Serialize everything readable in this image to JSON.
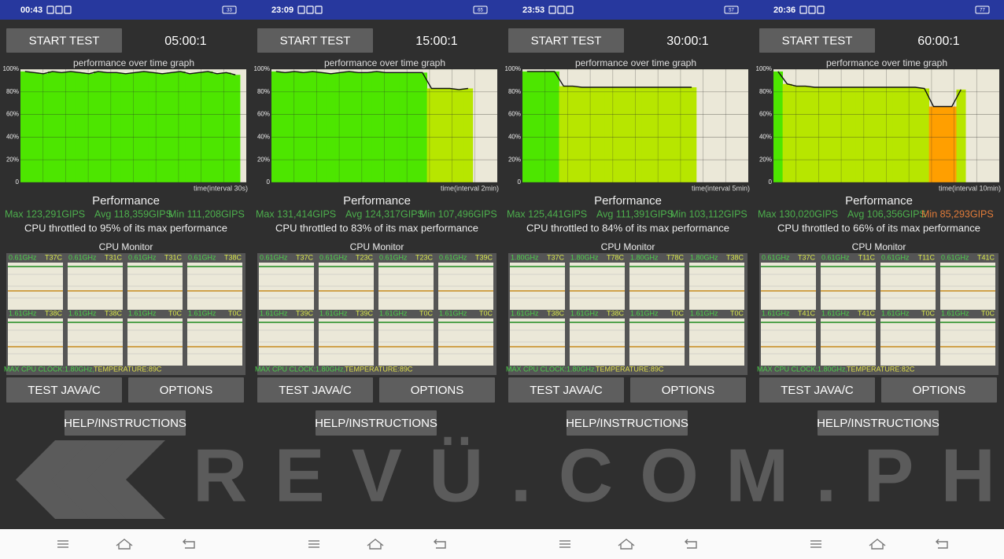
{
  "panels": [
    {
      "status_time": "00:43",
      "battery": "33",
      "start_button": "START TEST",
      "duration": "05:00:1",
      "graph": {
        "title": "performance over time graph",
        "x_label": "time(interval 30s)",
        "ylim": [
          0,
          100
        ],
        "yticks": [
          {
            "value": 100,
            "label": "100%"
          },
          {
            "value": 80,
            "label": "80%"
          },
          {
            "value": 60,
            "label": "60%"
          },
          {
            "value": 40,
            "label": "40%"
          },
          {
            "value": 20,
            "label": "20%"
          },
          0
        ],
        "values": [
          98,
          97,
          96,
          98,
          97,
          98,
          97,
          96,
          98,
          97,
          97,
          96,
          97,
          98,
          97,
          96,
          97,
          98,
          96,
          97,
          98,
          96,
          97,
          95
        ]
      },
      "performance_title": "Performance",
      "max": "Max 123,291GIPS",
      "avg": "Avg 118,359GIPS",
      "min": "Min 111,208GIPS",
      "min_color": "#4cae4c",
      "throttle": "CPU throttled to 95% of its max performance",
      "cpu_monitor": "CPU Monitor",
      "cores": [
        {
          "freq": "0.61GHz",
          "temp": "T37C"
        },
        {
          "freq": "0.61GHz",
          "temp": "T31C"
        },
        {
          "freq": "0.61GHz",
          "temp": "T31C"
        },
        {
          "freq": "0.61GHz",
          "temp": "T38C"
        },
        {
          "freq": "1.61GHz",
          "temp": "T38C"
        },
        {
          "freq": "1.61GHz",
          "temp": "T38C"
        },
        {
          "freq": "1.61GHz",
          "temp": "T0C"
        },
        {
          "freq": "1.61GHz",
          "temp": "T0C"
        }
      ],
      "max_clock": "MAX CPU CLOCK:1.80GHz,",
      "temperature": "TEMPERATURE:89C",
      "test_button": "TEST JAVA/C",
      "options_button": "OPTIONS",
      "help_button": "HELP/INSTRUCTIONS"
    },
    {
      "status_time": "23:09",
      "battery": "65",
      "start_button": "START TEST",
      "duration": "15:00:1",
      "graph": {
        "title": "performance over time graph",
        "x_label": "time(interval 2min)",
        "ylim": [
          0,
          100
        ],
        "yticks": [
          {
            "value": 100,
            "label": "100%"
          },
          {
            "value": 80,
            "label": "80%"
          },
          {
            "value": 60,
            "label": "60%"
          },
          {
            "value": 40,
            "label": "40%"
          },
          {
            "value": 20,
            "label": "20%"
          },
          0
        ],
        "values": [
          98,
          97,
          98,
          97,
          98,
          97,
          96,
          97,
          98,
          97,
          97,
          98,
          97,
          97,
          97,
          97,
          97,
          83,
          83,
          83,
          82,
          83,
          null,
          null
        ]
      },
      "performance_title": "Performance",
      "max": "Max 131,414GIPS",
      "avg": "Avg 124,317GIPS",
      "min": "Min 107,496GIPS",
      "min_color": "#4cae4c",
      "throttle": "CPU throttled to 83% of its max performance",
      "cpu_monitor": "CPU Monitor",
      "cores": [
        {
          "freq": "0.61GHz",
          "temp": "T37C"
        },
        {
          "freq": "0.61GHz",
          "temp": "T23C"
        },
        {
          "freq": "0.61GHz",
          "temp": "T23C"
        },
        {
          "freq": "0.61GHz",
          "temp": "T39C"
        },
        {
          "freq": "1.61GHz",
          "temp": "T39C"
        },
        {
          "freq": "1.61GHz",
          "temp": "T39C"
        },
        {
          "freq": "1.61GHz",
          "temp": "T0C"
        },
        {
          "freq": "1.61GHz",
          "temp": "T0C"
        }
      ],
      "max_clock": "MAX CPU CLOCK:1.80GHz,",
      "temperature": "TEMPERATURE:89C",
      "test_button": "TEST JAVA/C",
      "options_button": "OPTIONS",
      "help_button": "HELP/INSTRUCTIONS"
    },
    {
      "status_time": "23:53",
      "battery": "57",
      "start_button": "START TEST",
      "duration": "30:00:1",
      "graph": {
        "title": "performance over time graph",
        "x_label": "time(interval 5min)",
        "ylim": [
          0,
          100
        ],
        "yticks": [
          {
            "value": 100,
            "label": "100%"
          },
          {
            "value": 80,
            "label": "80%"
          },
          {
            "value": 60,
            "label": "60%"
          },
          {
            "value": 40,
            "label": "40%"
          },
          {
            "value": 20,
            "label": "20%"
          },
          0
        ],
        "values": [
          98,
          98,
          98,
          98,
          85,
          85,
          84,
          84,
          84,
          84,
          84,
          84,
          84,
          84,
          84,
          84,
          84,
          84,
          84,
          null,
          null,
          null,
          null,
          null
        ]
      },
      "performance_title": "Performance",
      "max": "Max 125,441GIPS",
      "avg": "Avg 111,391GIPS",
      "min": "Min 103,112GIPS",
      "min_color": "#4cae4c",
      "throttle": "CPU throttled to 84% of its max performance",
      "cpu_monitor": "CPU Monitor",
      "cores": [
        {
          "freq": "1.80GHz",
          "temp": "T37C"
        },
        {
          "freq": "1.80GHz",
          "temp": "T78C"
        },
        {
          "freq": "1.80GHz",
          "temp": "T78C"
        },
        {
          "freq": "1.80GHz",
          "temp": "T38C"
        },
        {
          "freq": "1.61GHz",
          "temp": "T38C"
        },
        {
          "freq": "1.61GHz",
          "temp": "T38C"
        },
        {
          "freq": "1.61GHz",
          "temp": "T0C"
        },
        {
          "freq": "1.61GHz",
          "temp": "T0C"
        }
      ],
      "max_clock": "MAX CPU CLOCK:1.80GHz,",
      "temperature": "TEMPERATURE:89C",
      "test_button": "TEST JAVA/C",
      "options_button": "OPTIONS",
      "help_button": "HELP/INSTRUCTIONS"
    },
    {
      "status_time": "20:36",
      "battery": "77",
      "start_button": "START TEST",
      "duration": "60:00:1",
      "graph": {
        "title": "performance over time graph",
        "x_label": "time(interval 10min)",
        "ylim": [
          0,
          100
        ],
        "yticks": [
          {
            "value": 100,
            "label": "100%"
          },
          {
            "value": 80,
            "label": "80%"
          },
          {
            "value": 60,
            "label": "60%"
          },
          {
            "value": 40,
            "label": "40%"
          },
          {
            "value": 20,
            "label": "20%"
          },
          0
        ],
        "values": [
          98,
          87,
          85,
          85,
          84,
          84,
          84,
          84,
          84,
          84,
          84,
          84,
          84,
          84,
          84,
          84,
          83,
          67,
          67,
          67,
          82,
          null,
          null,
          null
        ]
      },
      "performance_title": "Performance",
      "max": "Max 130,020GIPS",
      "avg": "Avg 106,356GIPS",
      "min": "Min 85,293GIPS",
      "min_color": "#e07b39",
      "throttle": "CPU throttled to 66% of its max performance",
      "cpu_monitor": "CPU Monitor",
      "cores": [
        {
          "freq": "0.61GHz",
          "temp": "T37C"
        },
        {
          "freq": "0.61GHz",
          "temp": "T11C"
        },
        {
          "freq": "0.61GHz",
          "temp": "T11C"
        },
        {
          "freq": "0.61GHz",
          "temp": "T41C"
        },
        {
          "freq": "1.61GHz",
          "temp": "T41C"
        },
        {
          "freq": "1.61GHz",
          "temp": "T41C"
        },
        {
          "freq": "1.61GHz",
          "temp": "T0C"
        },
        {
          "freq": "1.61GHz",
          "temp": "T0C"
        }
      ],
      "max_clock": "MAX CPU CLOCK:1.80GHz,",
      "temperature": "TEMPERATURE:82C",
      "test_button": "TEST JAVA/C",
      "options_button": "OPTIONS",
      "help_button": "HELP/INSTRUCTIONS"
    }
  ],
  "watermark": "REVÜ.COM.PH"
}
